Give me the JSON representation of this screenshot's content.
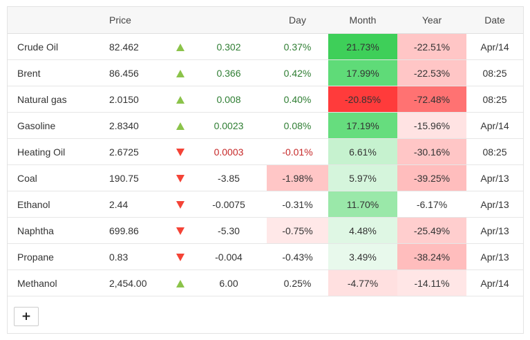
{
  "headers": {
    "price": "Price",
    "day": "Day",
    "month": "Month",
    "year": "Year",
    "date": "Date"
  },
  "rows": [
    {
      "name": "Crude Oil",
      "price": "82.462",
      "dir": "up",
      "change": "0.302",
      "day": "0.37%",
      "month": "21.73%",
      "year": "-22.51%",
      "date": "Apr/14",
      "chg_color": "#2e7d32",
      "day_color": "#2e7d32",
      "day_bg": "#ffffff",
      "month_bg": "#3ecf59",
      "year_bg": "#ffc6c6"
    },
    {
      "name": "Brent",
      "price": "86.456",
      "dir": "up",
      "change": "0.366",
      "day": "0.42%",
      "month": "17.99%",
      "year": "-22.53%",
      "date": "08:25",
      "chg_color": "#2e7d32",
      "day_color": "#2e7d32",
      "day_bg": "#ffffff",
      "month_bg": "#5fdb78",
      "year_bg": "#ffc6c6"
    },
    {
      "name": "Natural gas",
      "price": "2.0150",
      "dir": "up",
      "change": "0.008",
      "day": "0.40%",
      "month": "-20.85%",
      "year": "-72.48%",
      "date": "08:25",
      "chg_color": "#2e7d32",
      "day_color": "#2e7d32",
      "day_bg": "#ffffff",
      "month_bg": "#ff3b3b",
      "year_bg": "#ff7272"
    },
    {
      "name": "Gasoline",
      "price": "2.8340",
      "dir": "up",
      "change": "0.0023",
      "day": "0.08%",
      "month": "17.19%",
      "year": "-15.96%",
      "date": "Apr/14",
      "chg_color": "#2e7d32",
      "day_color": "#2e7d32",
      "day_bg": "#ffffff",
      "month_bg": "#66dd7e",
      "year_bg": "#ffe3e3"
    },
    {
      "name": "Heating Oil",
      "price": "2.6725",
      "dir": "down",
      "change": "0.0003",
      "day": "-0.01%",
      "month": "6.61%",
      "year": "-30.16%",
      "date": "08:25",
      "chg_color": "#c62828",
      "day_color": "#c62828",
      "day_bg": "#ffffff",
      "month_bg": "#c6f2cf",
      "year_bg": "#ffc6c6"
    },
    {
      "name": "Coal",
      "price": "190.75",
      "dir": "down",
      "change": "-3.85",
      "day": "-1.98%",
      "month": "5.97%",
      "year": "-39.25%",
      "date": "Apr/13",
      "chg_color": "#333333",
      "day_color": "#333333",
      "day_bg": "#ffc6c6",
      "month_bg": "#d5f5dc",
      "year_bg": "#ffbdbd"
    },
    {
      "name": "Ethanol",
      "price": "2.44",
      "dir": "down",
      "change": "-0.0075",
      "day": "-0.31%",
      "month": "11.70%",
      "year": "-6.17%",
      "date": "Apr/13",
      "chg_color": "#333333",
      "day_color": "#333333",
      "day_bg": "#ffffff",
      "month_bg": "#9ae8a9",
      "year_bg": "#ffffff"
    },
    {
      "name": "Naphtha",
      "price": "699.86",
      "dir": "down",
      "change": "-5.30",
      "day": "-0.75%",
      "month": "4.48%",
      "year": "-25.49%",
      "date": "Apr/13",
      "chg_color": "#333333",
      "day_color": "#333333",
      "day_bg": "#ffe8e8",
      "month_bg": "#dff7e4",
      "year_bg": "#ffcece"
    },
    {
      "name": "Propane",
      "price": "0.83",
      "dir": "down",
      "change": "-0.004",
      "day": "-0.43%",
      "month": "3.49%",
      "year": "-38.24%",
      "date": "Apr/13",
      "chg_color": "#333333",
      "day_color": "#333333",
      "day_bg": "#ffffff",
      "month_bg": "#e8f9ec",
      "year_bg": "#ffbdbd"
    },
    {
      "name": "Methanol",
      "price": "2,454.00",
      "dir": "up",
      "change": "6.00",
      "day": "0.25%",
      "month": "-4.77%",
      "year": "-14.11%",
      "date": "Apr/14",
      "chg_color": "#333333",
      "day_color": "#333333",
      "day_bg": "#ffffff",
      "month_bg": "#ffe0e0",
      "year_bg": "#ffe6e6"
    }
  ],
  "add_button": {
    "label": "+"
  }
}
